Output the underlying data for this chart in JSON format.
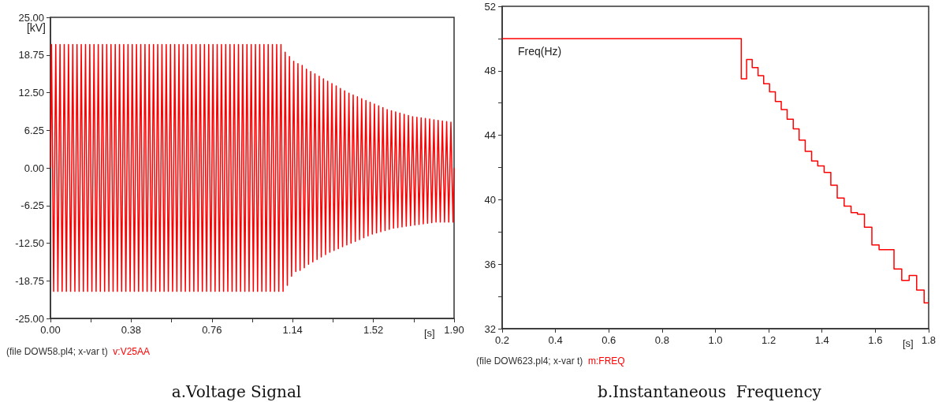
{
  "chart_data": [
    {
      "type": "line",
      "title": "a.Voltage Signal",
      "xlabel": "[s]",
      "ylabel": "[kV]",
      "annotations": [
        "(file DOW58.pl4; x-var t)",
        "v:V25AA"
      ],
      "grid": false,
      "marker": "none",
      "line_style": "solid",
      "xlim": [
        0,
        1.9
      ],
      "ylim": [
        -25,
        25
      ],
      "xticks": [
        {
          "value": 0,
          "label": "0.00"
        },
        {
          "value": 0.19,
          "label": null
        },
        {
          "value": 0.38,
          "label": "0.38"
        },
        {
          "value": 0.57,
          "label": null
        },
        {
          "value": 0.76,
          "label": "0.76"
        },
        {
          "value": 0.95,
          "label": null
        },
        {
          "value": 1.14,
          "label": "1.14"
        },
        {
          "value": 1.33,
          "label": null
        },
        {
          "value": 1.52,
          "label": "1.52"
        },
        {
          "value": 1.71,
          "label": null
        },
        {
          "value": 1.9,
          "label": "1.90"
        }
      ],
      "yticks": [
        {
          "value": -25,
          "label": "-25.00"
        },
        {
          "value": -18.75,
          "label": "-18.75"
        },
        {
          "value": -12.5,
          "label": "-12.50"
        },
        {
          "value": -6.25,
          "label": "-6.25"
        },
        {
          "value": 0,
          "label": "0.00"
        },
        {
          "value": 6.25,
          "label": "6.25"
        },
        {
          "value": 12.5,
          "label": "12.50"
        },
        {
          "value": 18.75,
          "label": "18.75"
        },
        {
          "value": 25,
          "label": "25.00"
        }
      ],
      "series": [
        {
          "color": "#ff0000",
          "x": [
            0,
            0.005,
            0.015,
            0.025,
            0.035,
            0.045,
            0.055,
            0.065,
            0.075,
            0.085,
            0.095,
            0.105,
            0.115,
            0.125,
            0.135,
            0.145,
            0.155,
            0.165,
            0.175,
            0.185,
            0.195,
            0.205,
            0.215,
            0.225,
            0.235,
            0.245,
            0.255,
            0.265,
            0.275,
            0.285,
            0.295,
            0.305,
            0.315,
            0.325,
            0.335,
            0.345,
            0.355,
            0.365,
            0.375,
            0.385,
            0.395,
            0.405,
            0.415,
            0.425,
            0.435,
            0.445,
            0.455,
            0.465,
            0.475,
            0.485,
            0.495,
            0.505,
            0.515,
            0.525,
            0.535,
            0.545,
            0.555,
            0.565,
            0.575,
            0.585,
            0.595,
            0.605,
            0.615,
            0.625,
            0.635,
            0.645,
            0.655,
            0.665,
            0.675,
            0.685,
            0.695,
            0.705,
            0.715,
            0.725,
            0.735,
            0.745,
            0.755,
            0.765,
            0.775,
            0.785,
            0.795,
            0.805,
            0.815,
            0.825,
            0.835,
            0.845,
            0.855,
            0.865,
            0.875,
            0.885,
            0.895,
            0.905,
            0.915,
            0.925,
            0.935,
            0.945,
            0.955,
            0.965,
            0.975,
            0.985,
            0.995,
            1.005,
            1.015,
            1.025,
            1.035,
            1.045,
            1.055,
            1.065,
            1.075,
            1.085,
            1.095,
            1.105,
            1.115,
            1.125,
            1.135,
            1.145,
            1.155,
            1.165,
            1.175,
            1.185,
            1.195,
            1.205,
            1.215,
            1.225,
            1.235,
            1.245,
            1.255,
            1.265,
            1.275,
            1.285,
            1.295,
            1.305,
            1.315,
            1.325,
            1.335,
            1.345,
            1.355,
            1.365,
            1.375,
            1.385,
            1.395,
            1.405,
            1.415,
            1.425,
            1.435,
            1.445,
            1.455,
            1.465,
            1.475,
            1.485,
            1.495,
            1.505,
            1.515,
            1.525,
            1.535,
            1.545,
            1.555,
            1.565,
            1.575,
            1.585,
            1.595,
            1.605,
            1.615,
            1.625,
            1.635,
            1.645,
            1.655,
            1.665,
            1.675,
            1.685,
            1.695,
            1.705,
            1.715,
            1.725,
            1.735,
            1.745,
            1.755,
            1.765,
            1.775,
            1.785,
            1.795,
            1.805,
            1.815,
            1.825,
            1.835,
            1.845,
            1.855,
            1.865,
            1.875,
            1.885,
            1.895,
            1.9
          ],
          "values": [
            0,
            20.5,
            -20.5,
            20.5,
            -20.5,
            20.5,
            -20.5,
            20.5,
            -20.5,
            20.5,
            -20.5,
            20.5,
            -20.5,
            20.5,
            -20.5,
            20.5,
            -20.5,
            20.5,
            -20.5,
            20.5,
            -20.5,
            20.5,
            -20.5,
            20.5,
            -20.5,
            20.5,
            -20.5,
            20.5,
            -20.5,
            20.5,
            -20.5,
            20.5,
            -20.5,
            20.5,
            -20.5,
            20.5,
            -20.5,
            20.5,
            -20.5,
            20.5,
            -20.5,
            20.5,
            -20.5,
            20.5,
            -20.5,
            20.5,
            -20.5,
            20.5,
            -20.5,
            20.5,
            -20.5,
            20.5,
            -20.5,
            20.5,
            -20.5,
            20.5,
            -20.5,
            20.5,
            -20.5,
            20.5,
            -20.5,
            20.5,
            -20.5,
            20.5,
            -20.5,
            20.5,
            -20.5,
            20.5,
            -20.5,
            20.5,
            -20.5,
            20.5,
            -20.5,
            20.5,
            -20.5,
            20.5,
            -20.5,
            20.5,
            -20.5,
            20.5,
            -20.5,
            20.5,
            -20.5,
            20.5,
            -20.5,
            20.5,
            -20.5,
            20.5,
            -20.5,
            20.5,
            -20.5,
            20.5,
            -20.5,
            20.5,
            -20.5,
            20.5,
            -20.5,
            20.5,
            -20.5,
            20.5,
            -20.5,
            20.5,
            -20.5,
            20.5,
            -20.5,
            20.5,
            -20.5,
            20.5,
            -20.5,
            20.5,
            -20.5,
            19.2,
            -19.5,
            18.5,
            -18,
            17.7,
            -17.2,
            17.3,
            -17,
            17,
            -16.6,
            16.4,
            -16,
            16,
            -15.6,
            15.6,
            -15.2,
            15.2,
            -14.8,
            14.8,
            -14.4,
            14.4,
            -14,
            14,
            -13.7,
            13.6,
            -13.4,
            13.2,
            -13.1,
            12.8,
            -12.8,
            12.4,
            -12.5,
            12.1,
            -12.2,
            11.8,
            -11.9,
            11.5,
            -11.6,
            11.2,
            -11.3,
            10.9,
            -11,
            10.6,
            -10.8,
            10.3,
            -10.6,
            10,
            -10.4,
            9.7,
            -10.2,
            9.5,
            -10,
            9.3,
            -9.9,
            9.1,
            -9.8,
            8.9,
            -9.7,
            8.7,
            -9.6,
            8.5,
            -9.5,
            8.4,
            -9.4,
            8.3,
            -9.3,
            8.2,
            -9.2,
            8.1,
            -9.1,
            8,
            -9,
            7.9,
            -9,
            7.8,
            -9,
            7.7,
            -9,
            7.6,
            -9,
            0
          ]
        }
      ]
    },
    {
      "type": "step",
      "title": "b.Instantaneous  Frequency",
      "xlabel": "[s]",
      "ylabel": "Freq(Hz)",
      "annotations": [
        "(file DOW623.pl4; x-var t)",
        "m:FREQ"
      ],
      "grid": false,
      "marker": "none",
      "line_style": "solid",
      "xlim": [
        0.2,
        1.8
      ],
      "ylim": [
        32,
        52
      ],
      "xticks": [
        0.2,
        0.4,
        0.6,
        0.8,
        {
          "value": 1,
          "label": "1.0"
        },
        1.2,
        1.4,
        1.6,
        1.8
      ],
      "yticks": [
        32,
        {
          "value": 34,
          "label": null
        },
        36,
        {
          "value": 38,
          "label": null
        },
        40,
        {
          "value": 42,
          "label": null
        },
        44,
        {
          "value": 46,
          "label": null
        },
        48,
        {
          "value": 50,
          "label": null
        },
        52
      ],
      "series": [
        {
          "color": "#ff0000",
          "x": [
            0.2,
            1.097,
            1.117,
            1.138,
            1.16,
            1.181,
            1.203,
            1.225,
            1.247,
            1.269,
            1.292,
            1.314,
            1.337,
            1.361,
            1.384,
            1.408,
            1.433,
            1.457,
            1.483,
            1.509,
            1.533,
            1.559,
            1.587,
            1.614,
            1.67,
            1.699,
            1.727,
            1.755,
            1.783,
            1.8
          ],
          "values": [
            50,
            47.5,
            48.7,
            48.2,
            47.7,
            47.2,
            46.7,
            46.1,
            45.6,
            45,
            44.4,
            43.7,
            43,
            42.4,
            42.1,
            41.7,
            40.9,
            40.1,
            39.6,
            39.2,
            39.1,
            38.3,
            37.2,
            36.9,
            35.7,
            35,
            35.3,
            34.4,
            33.6,
            33.6
          ]
        }
      ]
    }
  ]
}
